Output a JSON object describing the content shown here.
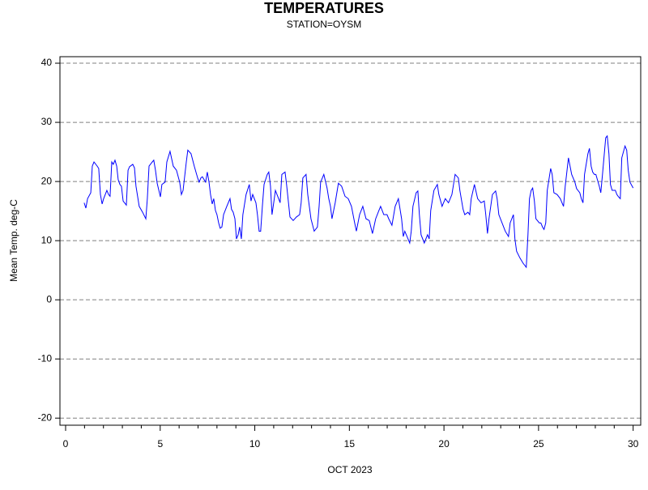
{
  "chart_data": {
    "type": "line",
    "title": "TEMPERATURES",
    "subtitle": "STATION=OYSM",
    "xlabel": "OCT 2023",
    "ylabel": "Mean Temp. deg-C",
    "xlim": [
      -0.3,
      30.4
    ],
    "ylim": [
      -21.2,
      41.1
    ],
    "xticks": [
      0,
      5,
      10,
      15,
      20,
      25,
      30
    ],
    "xminorticks": [
      1,
      2,
      3,
      4,
      6,
      7,
      8,
      9,
      11,
      12,
      13,
      14,
      16,
      17,
      18,
      19,
      21,
      22,
      23,
      24,
      26,
      27,
      28,
      29
    ],
    "yticks": [
      -20,
      -10,
      0,
      10,
      20,
      30,
      40
    ],
    "grid": true,
    "series": [
      {
        "color": "#0000ff",
        "x": [
          0.98,
          1.07,
          1.16,
          1.33,
          1.41,
          1.5,
          1.67,
          1.75,
          1.84,
          1.93,
          2.01,
          2.18,
          2.27,
          2.35,
          2.44,
          2.52,
          2.61,
          2.7,
          2.78,
          2.87,
          2.95,
          3.04,
          3.21,
          3.3,
          3.38,
          3.55,
          3.64,
          3.72,
          3.89,
          4.07,
          4.24,
          4.32,
          4.41,
          4.58,
          4.66,
          4.75,
          4.84,
          5.01,
          5.09,
          5.26,
          5.35,
          5.52,
          5.69,
          5.86,
          6.03,
          6.12,
          6.21,
          6.38,
          6.46,
          6.63,
          6.8,
          6.98,
          7.06,
          7.15,
          7.23,
          7.4,
          7.49,
          7.58,
          7.66,
          7.75,
          7.83,
          7.92,
          8.0,
          8.09,
          8.17,
          8.26,
          8.35,
          8.52,
          8.69,
          8.77,
          8.86,
          8.95,
          9.03,
          9.12,
          9.2,
          9.29,
          9.37,
          9.54,
          9.71,
          9.8,
          9.89,
          10.06,
          10.14,
          10.23,
          10.31,
          10.4,
          10.49,
          10.66,
          10.74,
          10.83,
          10.91,
          11.0,
          11.09,
          11.26,
          11.34,
          11.43,
          11.6,
          11.68,
          11.86,
          12.03,
          12.2,
          12.37,
          12.45,
          12.54,
          12.71,
          12.8,
          12.97,
          13.14,
          13.31,
          13.4,
          13.48,
          13.65,
          13.82,
          13.91,
          14.0,
          14.08,
          14.25,
          14.42,
          14.59,
          14.77,
          14.94,
          15.11,
          15.28,
          15.37,
          15.54,
          15.71,
          15.88,
          16.05,
          16.22,
          16.39,
          16.56,
          16.65,
          16.82,
          16.99,
          17.08,
          17.25,
          17.42,
          17.59,
          17.76,
          17.85,
          17.93,
          18.1,
          18.19,
          18.27,
          18.36,
          18.53,
          18.62,
          18.7,
          18.79,
          18.96,
          19.13,
          19.22,
          19.3,
          19.47,
          19.65,
          19.73,
          19.9,
          20.07,
          20.24,
          20.42,
          20.59,
          20.76,
          20.84,
          21.01,
          21.1,
          21.27,
          21.36,
          21.44,
          21.61,
          21.78,
          21.96,
          22.13,
          22.21,
          22.3,
          22.38,
          22.56,
          22.73,
          22.81,
          22.9,
          23.07,
          23.24,
          23.41,
          23.5,
          23.67,
          23.75,
          23.84,
          24.01,
          24.18,
          24.35,
          24.44,
          24.52,
          24.61,
          24.69,
          24.78,
          24.86,
          25.04,
          25.12,
          25.21,
          25.29,
          25.38,
          25.46,
          25.64,
          25.72,
          25.81,
          25.98,
          26.15,
          26.24,
          26.32,
          26.41,
          26.58,
          26.75,
          26.92,
          27.01,
          27.18,
          27.26,
          27.35,
          27.43,
          27.61,
          27.69,
          27.78,
          27.86,
          27.95,
          28.03,
          28.21,
          28.29,
          28.38,
          28.55,
          28.63,
          28.72,
          28.8,
          28.89,
          29.06,
          29.14,
          29.23,
          29.32,
          29.4,
          29.57,
          29.66,
          29.74,
          29.83,
          30.0
        ],
        "values": [
          16.4,
          15.5,
          17.1,
          18.1,
          22.6,
          23.3,
          22.6,
          22.2,
          17.8,
          16.2,
          17.1,
          18.5,
          17.8,
          17.5,
          23.3,
          22.9,
          23.6,
          22.6,
          20.3,
          19.5,
          19.2,
          16.7,
          16.0,
          21.9,
          22.5,
          22.9,
          22.3,
          19.2,
          15.8,
          14.8,
          13.7,
          17.1,
          22.6,
          23.3,
          23.6,
          21.9,
          19.7,
          17.4,
          19.5,
          19.9,
          23.3,
          25.1,
          22.6,
          21.9,
          19.9,
          17.8,
          18.5,
          23.3,
          25.3,
          24.7,
          22.6,
          20.6,
          19.9,
          20.6,
          20.8,
          19.9,
          21.6,
          19.9,
          17.8,
          16.2,
          17.1,
          15.1,
          14.4,
          13.0,
          12.1,
          12.3,
          14.4,
          15.8,
          17.1,
          15.3,
          14.8,
          13.7,
          10.3,
          11.0,
          12.3,
          10.3,
          14.4,
          17.8,
          19.5,
          16.7,
          17.8,
          16.4,
          14.4,
          11.6,
          11.6,
          15.8,
          19.5,
          21.2,
          21.6,
          19.2,
          14.4,
          16.4,
          18.5,
          17.1,
          16.4,
          21.2,
          21.6,
          19.5,
          14.0,
          13.4,
          14.0,
          14.4,
          16.4,
          20.6,
          21.2,
          17.8,
          13.7,
          11.6,
          12.3,
          15.8,
          19.9,
          21.2,
          18.9,
          17.1,
          15.8,
          13.7,
          16.4,
          19.7,
          19.2,
          17.5,
          17.1,
          15.8,
          13.0,
          11.6,
          14.4,
          15.8,
          13.7,
          13.4,
          11.2,
          13.7,
          15.1,
          15.8,
          14.4,
          14.4,
          13.7,
          12.6,
          15.8,
          17.1,
          13.7,
          10.7,
          11.6,
          10.3,
          9.6,
          11.6,
          15.8,
          18.1,
          18.4,
          14.4,
          11.0,
          9.6,
          11.0,
          10.3,
          15.1,
          18.5,
          19.5,
          17.8,
          15.8,
          17.1,
          16.4,
          17.8,
          21.2,
          20.6,
          18.5,
          15.3,
          14.4,
          14.8,
          14.4,
          17.1,
          19.5,
          17.1,
          16.4,
          16.7,
          14.4,
          11.2,
          13.7,
          17.8,
          18.4,
          17.1,
          14.4,
          13.0,
          11.6,
          10.7,
          13.0,
          14.4,
          10.3,
          8.2,
          7.1,
          6.2,
          5.5,
          11.0,
          17.1,
          18.5,
          18.9,
          16.7,
          13.7,
          13.0,
          13.0,
          12.3,
          11.9,
          13.0,
          18.5,
          22.2,
          21.2,
          18.1,
          17.8,
          17.1,
          16.4,
          15.8,
          19.2,
          24.0,
          21.2,
          19.9,
          18.8,
          18.1,
          17.1,
          16.4,
          21.2,
          24.7,
          25.6,
          22.6,
          21.6,
          21.2,
          21.2,
          19.2,
          18.1,
          21.2,
          27.4,
          27.7,
          24.7,
          19.5,
          18.5,
          18.5,
          17.8,
          17.4,
          17.1,
          24.0,
          26.0,
          25.3,
          21.9,
          19.9,
          18.9
        ]
      }
    ]
  }
}
